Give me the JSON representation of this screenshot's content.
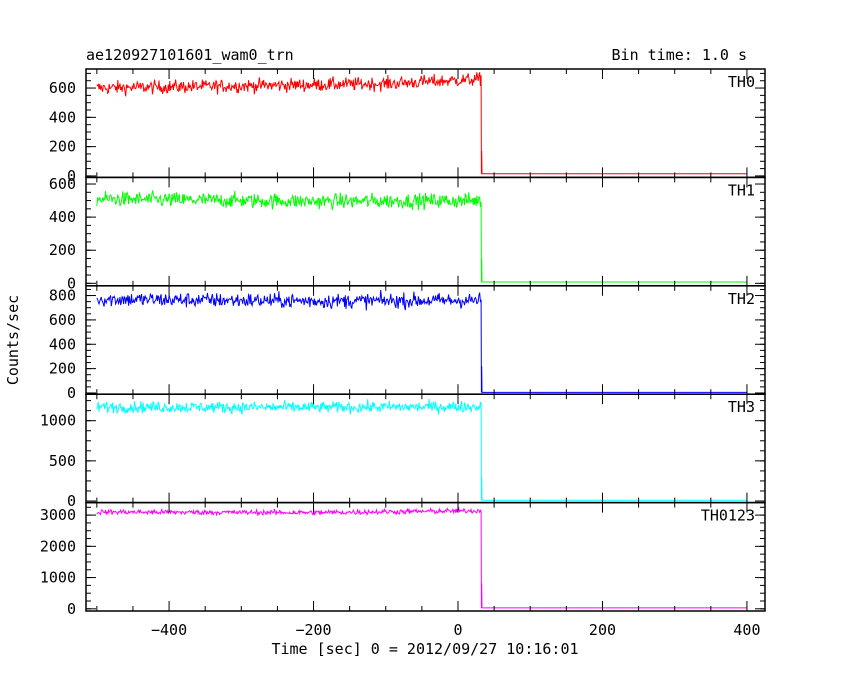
{
  "chart_data": {
    "type": "line",
    "title": "ae120927101601_wam0_trn",
    "bin_time": "Bin time: 1.0 s",
    "xlabel": "Time [sec] 0 = 2012/09/27 10:16:01",
    "ylabel": "Counts/sec",
    "xlim": [
      -515,
      425
    ],
    "x_ticks": [
      -400,
      -200,
      0,
      200,
      400
    ],
    "x_tick_labels": [
      "−400",
      "−200",
      "0",
      "200",
      "400"
    ],
    "grid": false,
    "drop_time": 32,
    "data_start": -500,
    "data_end": 400,
    "panels": [
      {
        "name": "TH0",
        "color": "#ff0000",
        "ylim": [
          -10,
          730
        ],
        "y_ticks": [
          0,
          200,
          400,
          600
        ],
        "y_tick_labels": [
          "0",
          "200",
          "400",
          "600"
        ],
        "level_segments": [
          [
            -500,
            600
          ],
          [
            -300,
            615
          ],
          [
            -100,
            630
          ],
          [
            32,
            660
          ]
        ],
        "noise": 45,
        "post_drop_level": 15,
        "spike_after_drop": 170
      },
      {
        "name": "TH1",
        "color": "#00ff00",
        "ylim": [
          -15,
          640
        ],
        "y_ticks": [
          0,
          200,
          400,
          600
        ],
        "y_tick_labels": [
          "0",
          "200",
          "400",
          "600"
        ],
        "level_segments": [
          [
            -500,
            510
          ],
          [
            -200,
            495
          ],
          [
            32,
            500
          ]
        ],
        "noise": 45,
        "post_drop_level": 8,
        "spike_after_drop": 150
      },
      {
        "name": "TH2",
        "color": "#0000ff",
        "ylim": [
          -10,
          880
        ],
        "y_ticks": [
          0,
          200,
          400,
          600,
          800
        ],
        "y_tick_labels": [
          "0",
          "200",
          "400",
          "600",
          "800"
        ],
        "level_segments": [
          [
            -500,
            770
          ],
          [
            -200,
            755
          ],
          [
            32,
            760
          ]
        ],
        "noise": 60,
        "post_drop_level": 5,
        "spike_after_drop": 220
      },
      {
        "name": "TH3",
        "color": "#00ffff",
        "ylim": [
          -20,
          1330
        ],
        "y_ticks": [
          0,
          500,
          1000
        ],
        "y_tick_labels": [
          "0",
          "500",
          "1000"
        ],
        "level_segments": [
          [
            -500,
            1170
          ],
          [
            -200,
            1165
          ],
          [
            32,
            1175
          ]
        ],
        "noise": 70,
        "post_drop_level": 10,
        "spike_after_drop": 300
      },
      {
        "name": "TH0123",
        "color": "#ff00ff",
        "ylim": [
          -70,
          3400
        ],
        "y_ticks": [
          0,
          1000,
          2000,
          3000
        ],
        "y_tick_labels": [
          "0",
          "1000",
          "2000",
          "3000"
        ],
        "level_segments": [
          [
            -500,
            3100
          ],
          [
            -200,
            3080
          ],
          [
            32,
            3140
          ]
        ],
        "noise": 80,
        "post_drop_level": 30,
        "spike_after_drop": 820
      }
    ]
  }
}
